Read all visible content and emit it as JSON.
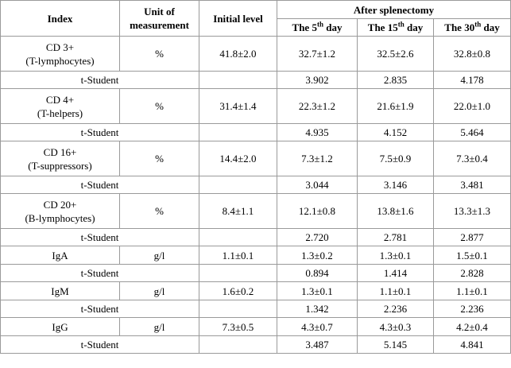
{
  "table": {
    "header": {
      "index": "Index",
      "unit": "Unit of measurement",
      "initial": "Initial level",
      "after": "After splenectomy",
      "days": [
        {
          "text": "The 5",
          "sup": "th",
          "rest": " day"
        },
        {
          "text": "The 15",
          "sup": "th",
          "rest": " day"
        },
        {
          "text": "The 30",
          "sup": "th",
          "rest": " day"
        }
      ]
    },
    "rows": [
      {
        "index": [
          "CD 3+",
          "(T-lymphocytes)"
        ],
        "unit": "%",
        "initial": "41.8±2.0",
        "values": [
          "32.7±1.2",
          "32.5±2.6",
          "32.8±0.8"
        ],
        "t_label": "t-Student",
        "t_values": [
          "3.902",
          "2.835",
          "4.178"
        ]
      },
      {
        "index": [
          "CD 4+",
          "(T-helpers)"
        ],
        "unit": "%",
        "initial": "31.4±1.4",
        "values": [
          "22.3±1.2",
          "21.6±1.9",
          "22.0±1.0"
        ],
        "t_label": "t-Student",
        "t_values": [
          "4.935",
          "4.152",
          "5.464"
        ]
      },
      {
        "index": [
          "CD 16+",
          "(T-suppressors)"
        ],
        "unit": "%",
        "initial": "14.4±2.0",
        "values": [
          "7.3±1.2",
          "7.5±0.9",
          "7.3±0.4"
        ],
        "t_label": "t-Student",
        "t_values": [
          "3.044",
          "3.146",
          "3.481"
        ]
      },
      {
        "index": [
          "CD 20+",
          "(B-lymphocytes)"
        ],
        "unit": "%",
        "initial": "8.4±1.1",
        "values": [
          "12.1±0.8",
          "13.8±1.6",
          "13.3±1.3"
        ],
        "t_label": "t-Student",
        "t_values": [
          "2.720",
          "2.781",
          "2.877"
        ]
      },
      {
        "index": [
          "IgA"
        ],
        "unit": "g/l",
        "initial": "1.1±0.1",
        "values": [
          "1.3±0.2",
          "1.3±0.1",
          "1.5±0.1"
        ],
        "t_label": "t-Student",
        "t_values": [
          "0.894",
          "1.414",
          "2.828"
        ]
      },
      {
        "index": [
          "IgM"
        ],
        "unit": "g/l",
        "initial": "1.6±0.2",
        "values": [
          "1.3±0.1",
          "1.1±0.1",
          "1.1±0.1"
        ],
        "t_label": "t-Student",
        "t_values": [
          "1.342",
          "2.236",
          "2.236"
        ]
      },
      {
        "index": [
          "IgG"
        ],
        "unit": "g/l",
        "initial": "7.3±0.5",
        "values": [
          "4.3±0.7",
          "4.3±0.3",
          "4.2±0.4"
        ],
        "t_label": "t-Student",
        "t_values": [
          "3.487",
          "5.145",
          "4.841"
        ]
      }
    ]
  }
}
